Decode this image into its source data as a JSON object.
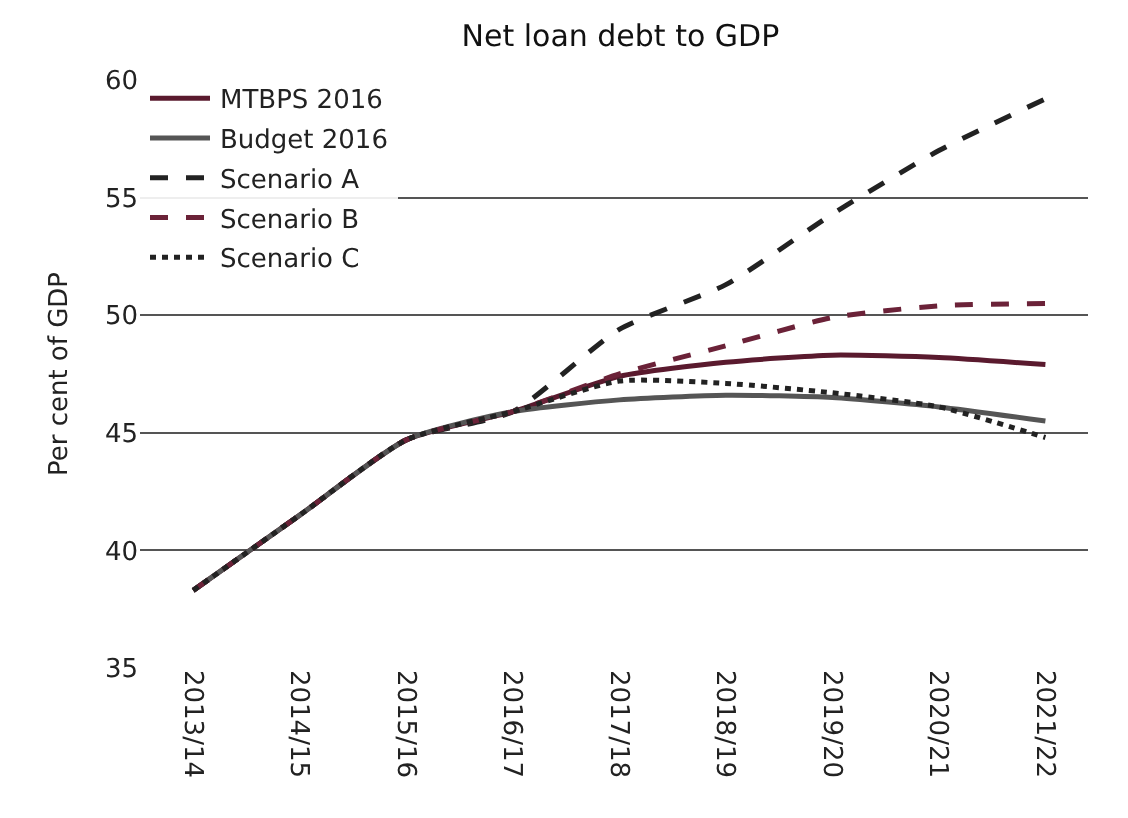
{
  "chart_data": {
    "type": "line",
    "title": "Net loan debt to GDP",
    "ylabel": "Per cent of GDP",
    "categories": [
      "2013/14",
      "2014/15",
      "2015/16",
      "2016/17",
      "2017/18",
      "2018/19",
      "2019/20",
      "2020/21",
      "2021/22"
    ],
    "series": [
      {
        "name": "MTBPS 2016",
        "color": "#5a1a2e",
        "line_style": "solid",
        "values": [
          38.3,
          41.5,
          44.7,
          45.9,
          47.4,
          48.0,
          48.3,
          48.2,
          47.9
        ]
      },
      {
        "name": "Budget 2016",
        "color": "#555555",
        "line_style": "solid",
        "values": [
          38.3,
          41.5,
          44.7,
          45.9,
          46.4,
          46.6,
          46.5,
          46.1,
          45.5
        ]
      },
      {
        "name": "Scenario A",
        "color": "#222222",
        "line_style": "dashed",
        "values": [
          38.3,
          41.5,
          44.7,
          45.9,
          49.4,
          51.3,
          54.3,
          57.0,
          59.2
        ]
      },
      {
        "name": "Scenario B",
        "color": "#6b2238",
        "line_style": "dashed",
        "values": [
          38.3,
          41.5,
          44.7,
          45.9,
          47.5,
          48.7,
          49.9,
          50.4,
          50.5
        ]
      },
      {
        "name": "Scenario C",
        "color": "#222222",
        "line_style": "dotted",
        "values": [
          38.3,
          41.5,
          44.7,
          45.9,
          47.2,
          47.1,
          46.7,
          46.1,
          44.8
        ]
      }
    ],
    "ylim": [
      35,
      60
    ],
    "yticks": [
      35,
      40,
      45,
      50,
      55,
      60
    ],
    "grid": "y",
    "legend": "top left"
  }
}
